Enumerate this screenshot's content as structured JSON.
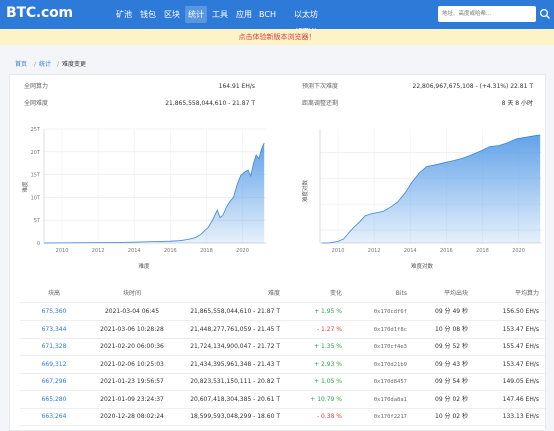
{
  "header": {
    "logo": "BTC.com",
    "nav": [
      {
        "label": "矿池",
        "active": false
      },
      {
        "label": "钱包",
        "active": false
      },
      {
        "label": "区块",
        "active": false
      },
      {
        "label": "统计",
        "active": true
      },
      {
        "label": "工具",
        "active": false
      },
      {
        "label": "应用",
        "active": false
      },
      {
        "label": "BCH",
        "active": false
      },
      {
        "label": "以太坊 (ETH)",
        "active": false
      }
    ],
    "search_placeholder": "地址、高度或哈希...",
    "search_icon": "search-icon"
  },
  "notice": "点击体验新版本浏览器！",
  "breadcrumb": [
    "首页",
    "统计",
    "难度变更"
  ],
  "stats": {
    "hashrate_label": "全网算力",
    "hashrate_value": "164.91 EH/s",
    "difficulty_label": "全网难度",
    "difficulty_value": "21,865,558,044,610 - 21.87 T",
    "next_label": "预测下次难度",
    "next_value": "22,806,967,675,108 - (+4.31%) 22.81 T",
    "remaining_label": "距离调整还剩",
    "remaining_value": "8 天 8 小时"
  },
  "charts": {
    "left": {
      "xlabel": "难度",
      "ylabel": "难度",
      "yticks": [
        "25T",
        "20T",
        "15T",
        "10T",
        "5T",
        "0"
      ],
      "xticks": [
        "2010",
        "2012",
        "2014",
        "2016",
        "2018",
        "2020"
      ]
    },
    "right": {
      "xlabel": "难度对数",
      "ylabel": "难度对数"
    },
    "fill": "#5a9ee8",
    "line": "#3b86dc"
  },
  "chart_data": [
    {
      "type": "area",
      "xlabel": "难度",
      "ylabel": "难度",
      "ylim": [
        0,
        25
      ],
      "xlim": [
        2009,
        2021.3
      ],
      "xticks": [
        "2010",
        "2012",
        "2014",
        "2016",
        "2018",
        "2020"
      ],
      "yticks": [
        "0",
        "5T",
        "10T",
        "15T",
        "20T",
        "25T"
      ],
      "grid": true,
      "x": [
        2009,
        2013,
        2014,
        2015,
        2016,
        2016.5,
        2017,
        2017.4,
        2017.7,
        2017.95,
        2018.1,
        2018.35,
        2018.6,
        2018.75,
        2018.9,
        2019.1,
        2019.3,
        2019.5,
        2019.7,
        2019.9,
        2020.1,
        2020.3,
        2020.45,
        2020.6,
        2020.75,
        2020.9,
        2021.05,
        2021.2
      ],
      "y": [
        0,
        0.1,
        0.2,
        0.3,
        0.4,
        0.5,
        0.8,
        1.2,
        1.9,
        2.9,
        3.4,
        5.1,
        7.2,
        5.6,
        6.0,
        7.8,
        9.1,
        10.0,
        12.8,
        14.8,
        15.5,
        16.0,
        14.7,
        17.4,
        19.3,
        18.5,
        20.6,
        21.9
      ]
    },
    {
      "type": "area",
      "xlabel": "难度对数",
      "ylabel": "难度对数",
      "xlim": [
        2009,
        2021.3
      ],
      "xticks": [
        "2010",
        "2012",
        "2014",
        "2016",
        "2018",
        "2020"
      ],
      "grid": true,
      "log_scale": true,
      "x": [
        2009.1,
        2009.5,
        2010.0,
        2010.3,
        2010.6,
        2010.9,
        2011.2,
        2011.5,
        2011.8,
        2012.2,
        2012.5,
        2012.9,
        2013.3,
        2013.7,
        2014.1,
        2014.5,
        2014.9,
        2015.4,
        2015.9,
        2016.4,
        2016.9,
        2017.4,
        2017.9,
        2018.4,
        2018.9,
        2019.4,
        2019.9,
        2020.4,
        2020.9,
        2021.2
      ],
      "y": [
        1,
        1,
        1.06,
        1.15,
        1.4,
        1.62,
        1.82,
        2.05,
        2.12,
        2.18,
        2.22,
        2.38,
        2.58,
        2.92,
        3.35,
        3.7,
        3.95,
        4.02,
        4.1,
        4.18,
        4.27,
        4.4,
        4.55,
        4.72,
        4.76,
        4.87,
        5.02,
        5.08,
        5.14,
        5.17
      ]
    }
  ],
  "table": {
    "headers": [
      "块高",
      "块时间",
      "难度",
      "变化",
      "Bits",
      "平均出块",
      "平均算力"
    ],
    "rows": [
      {
        "height": "675,360",
        "time": "2021-03-04 06:45",
        "difficulty": "21,865,558,044,610 - 21.87 T",
        "change": "+ 1.95 %",
        "dir": "up",
        "bits": "0x170cdf6f",
        "avg_block": "09 分 49 秒",
        "avg_hash": "156.50 EH/s"
      },
      {
        "height": "673,344",
        "time": "2021-03-06 10:28:28",
        "difficulty": "21,448,277,761,059 - 21.45 T",
        "change": "- 1.27 %",
        "dir": "down",
        "bits": "0x170d1f8c",
        "avg_block": "10 分 08 秒",
        "avg_hash": "153.47 EH/s"
      },
      {
        "height": "671,328",
        "time": "2021-02-20 06:00:36",
        "difficulty": "21,724,134,900,047 - 21.72 T",
        "change": "+ 1.35 %",
        "dir": "up",
        "bits": "0x170cf4e3",
        "avg_block": "09 分 52 秒",
        "avg_hash": "155.47 EH/s"
      },
      {
        "height": "669,312",
        "time": "2021-02-06 10:25:03",
        "difficulty": "21,434,395,961,348 - 21.43 T",
        "change": "+ 2.93 %",
        "dir": "up",
        "bits": "0x170d21b9",
        "avg_block": "09 分 43 秒",
        "avg_hash": "153.47 EH/s"
      },
      {
        "height": "667,296",
        "time": "2021-01-23 19:56:57",
        "difficulty": "20,823,531,150,111 - 20.82 T",
        "change": "+ 1.05 %",
        "dir": "up",
        "bits": "0x170d8457",
        "avg_block": "09 分 54 秒",
        "avg_hash": "149.05 EH/s"
      },
      {
        "height": "665,280",
        "time": "2021-01-09 23:24:37",
        "difficulty": "20,607,418,304,385 - 20.61 T",
        "change": "+ 10.79 %",
        "dir": "up",
        "bits": "0x170da8a1",
        "avg_block": "09 分 02 秒",
        "avg_hash": "147.46 EH/s"
      },
      {
        "height": "663,264",
        "time": "2020-12-28 08:02:24",
        "difficulty": "18,599,593,048,299 - 18.60 T",
        "change": "- 0.38 %",
        "dir": "down",
        "bits": "0x170f2217",
        "avg_block": "10 分 02 秒",
        "avg_hash": "133.13 EH/s"
      }
    ]
  }
}
